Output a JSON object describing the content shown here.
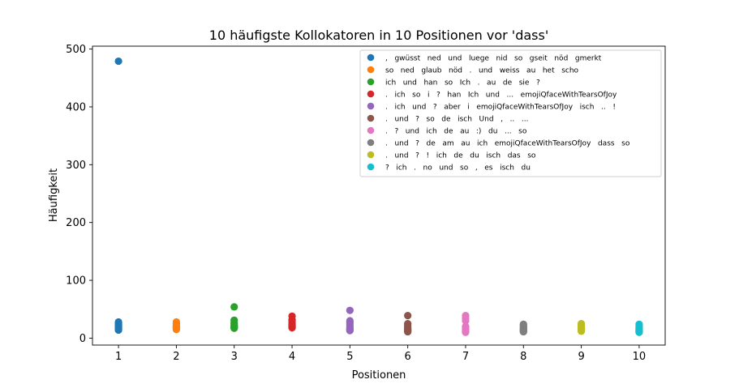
{
  "chart_data": {
    "type": "scatter",
    "title": "10 häufigste Kollokatoren in 10 Positionen vor 'dass'",
    "xlabel": "Positionen",
    "ylabel": "Häufigkeit",
    "xlim": [
      0.55,
      10.45
    ],
    "ylim": [
      -12,
      505
    ],
    "xticks": [
      "1",
      "2",
      "3",
      "4",
      "5",
      "6",
      "7",
      "8",
      "9",
      "10"
    ],
    "yticks": [
      "0",
      "100",
      "200",
      "300",
      "400",
      "500"
    ],
    "grid": false,
    "legend_position": "top-right",
    "series": [
      {
        "name": ",   gwüsst   ned   und   luege   nid   so   gseit   nöd   gmerkt",
        "color": "#1f77b4",
        "x": 1,
        "values": [
          479,
          28,
          26,
          24,
          22,
          20,
          18,
          17,
          15,
          14
        ]
      },
      {
        "name": "so   ned   glaub   nöd   .   und   weiss   au   het   scho",
        "color": "#ff7f0e",
        "x": 2,
        "values": [
          28,
          25,
          23,
          21,
          20,
          19,
          18,
          17,
          16,
          15
        ]
      },
      {
        "name": "ich   und   han   so   Ich   .   au   de   sie   ?",
        "color": "#2ca02c",
        "x": 3,
        "values": [
          54,
          31,
          28,
          25,
          23,
          21,
          20,
          19,
          18,
          17
        ]
      },
      {
        "name": ".   ich   so   i   ?   han   Ich   und   ...   emojiQfaceWithTearsOfJoy",
        "color": "#d62728",
        "x": 4,
        "values": [
          38,
          32,
          29,
          26,
          24,
          22,
          21,
          20,
          19,
          18
        ]
      },
      {
        "name": ".   ich   und   ?   aber   i   emojiQfaceWithTearsOfJoy   isch   ..   !",
        "color": "#9467bd",
        "x": 5,
        "values": [
          48,
          30,
          27,
          24,
          21,
          18,
          16,
          15,
          14,
          13
        ]
      },
      {
        "name": ".   und   ?   so   de   isch   Und   ,   ..   ...",
        "color": "#8c564b",
        "x": 6,
        "values": [
          39,
          25,
          22,
          19,
          17,
          15,
          14,
          13,
          12,
          11
        ]
      },
      {
        "name": ".   ?   und   ich   de   au   :)   du   ...   so",
        "color": "#e377c2",
        "x": 7,
        "values": [
          39,
          34,
          30,
          20,
          18,
          16,
          14,
          12,
          11,
          10
        ]
      },
      {
        "name": ".   und   ?   de   am   au   ich   emojiQfaceWithTearsOfJoy   dass   so",
        "color": "#7f7f7f",
        "x": 8,
        "values": [
          24,
          22,
          20,
          18,
          16,
          15,
          14,
          13,
          12,
          11
        ]
      },
      {
        "name": ".   und   ?   !   ich   de   du   isch   das   so",
        "color": "#bcbd22",
        "x": 9,
        "values": [
          25,
          22,
          20,
          18,
          17,
          16,
          15,
          14,
          13,
          12
        ]
      },
      {
        "name": "?   ich   .   no   und   so   ,   es   isch   du",
        "color": "#17becf",
        "x": 10,
        "values": [
          24,
          21,
          19,
          17,
          15,
          14,
          13,
          12,
          11,
          10
        ]
      }
    ]
  }
}
